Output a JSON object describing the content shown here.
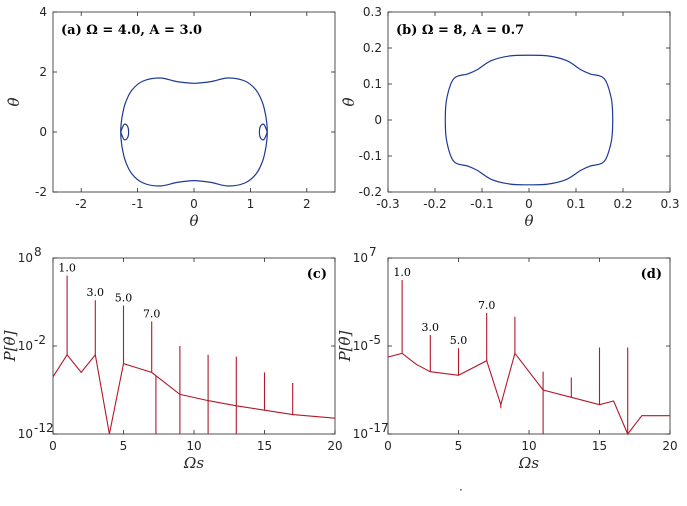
{
  "chart_data": [
    {
      "type": "line",
      "panel_label": "(a) Ω = 4.0, A = 3.0",
      "xlabel": "θ",
      "ylabel": "θ̇",
      "xlim": [
        -2.5,
        2.5
      ],
      "ylim": [
        -2,
        4
      ],
      "xticks": [
        "-2",
        "-1",
        "0",
        "1",
        "2"
      ],
      "yticks": [
        "-2",
        "0",
        "2",
        "4"
      ],
      "legend": "none",
      "line_color": "#1f3a93",
      "series": [
        {
          "x": [
            0,
            0.3,
            0.6,
            0.9,
            1.1,
            1.22,
            1.28,
            1.3,
            1.28,
            1.22,
            1.1,
            0.9,
            0.6,
            0.3,
            0,
            -0.3,
            -0.6,
            -0.9,
            -1.1,
            -1.22,
            -1.28,
            -1.3,
            -1.28,
            -1.22,
            -1.1,
            -0.9,
            -0.6,
            -0.3,
            0
          ],
          "y": [
            1.62,
            1.68,
            1.8,
            1.7,
            1.4,
            0.95,
            0.45,
            0,
            -0.45,
            -0.95,
            -1.4,
            -1.7,
            -1.8,
            -1.68,
            -1.62,
            -1.68,
            -1.8,
            -1.7,
            -1.4,
            -0.95,
            -0.45,
            0,
            0.45,
            0.95,
            1.4,
            1.7,
            1.8,
            1.68,
            1.62
          ]
        },
        {
          "x": [
            1.3,
            1.24,
            1.18,
            1.16,
            1.18,
            1.24,
            1.3
          ],
          "y": [
            0,
            0.25,
            0.2,
            0,
            -0.2,
            -0.25,
            0
          ]
        },
        {
          "x": [
            -1.3,
            -1.24,
            -1.18,
            -1.16,
            -1.18,
            -1.24,
            -1.3
          ],
          "y": [
            0,
            0.25,
            0.2,
            0,
            -0.2,
            -0.25,
            0
          ]
        }
      ]
    },
    {
      "type": "line",
      "panel_label": "(b) Ω = 8, A = 0.7",
      "xlabel": "θ",
      "ylabel": "θ̇",
      "xlim": [
        -0.3,
        0.3
      ],
      "ylim": [
        -0.2,
        0.3
      ],
      "xticks": [
        "-0.3",
        "-0.2",
        "-0.1",
        "0",
        "0.1",
        "0.2",
        "0.3"
      ],
      "yticks": [
        "-0.2",
        "-0.1",
        "0",
        "0.1",
        "0.2",
        "0.3"
      ],
      "legend": "none",
      "line_color": "#1f3a93",
      "series": [
        {
          "x": [
            0,
            0.04,
            0.08,
            0.11,
            0.13,
            0.16,
            0.175,
            0.178,
            0.175,
            0.16,
            0.13,
            0.11,
            0.08,
            0.04,
            0,
            -0.04,
            -0.08,
            -0.11,
            -0.13,
            -0.16,
            -0.175,
            -0.178,
            -0.175,
            -0.16,
            -0.13,
            -0.11,
            -0.08,
            -0.04,
            0
          ],
          "y": [
            0.18,
            0.178,
            0.165,
            0.14,
            0.128,
            0.115,
            0.06,
            0,
            -0.06,
            -0.115,
            -0.128,
            -0.14,
            -0.165,
            -0.178,
            -0.18,
            -0.178,
            -0.165,
            -0.14,
            -0.128,
            -0.115,
            -0.06,
            0,
            0.06,
            0.115,
            0.128,
            0.14,
            0.165,
            0.178,
            0.18
          ]
        }
      ]
    },
    {
      "type": "line",
      "panel_label": "(c)",
      "xlabel": "Ωs",
      "ylabel": "P[θ̇]",
      "xlim": [
        0,
        20
      ],
      "ylim": [
        -12,
        8
      ],
      "yscale": "log",
      "xticks": [
        "0",
        "5",
        "10",
        "15",
        "20"
      ],
      "yticks": [
        {
          "label": "10",
          "exp": "-12",
          "log": -12
        },
        {
          "label": "10",
          "exp": "-2",
          "log": -2
        },
        {
          "label": "10",
          "exp": "8",
          "log": 8
        }
      ],
      "legend": "none",
      "line_color": "#b2182b",
      "baseline_log_x": [
        0,
        1,
        2,
        3,
        4,
        5,
        6,
        7,
        9,
        11,
        13,
        15,
        17,
        20
      ],
      "baseline_log_y": [
        -5.5,
        -3.0,
        -5.0,
        -3.0,
        -13,
        -4.0,
        -4.5,
        -5.0,
        -7.5,
        -8.2,
        -8.8,
        -9.3,
        -9.8,
        -10.2
      ],
      "peaks": [
        {
          "x": 1,
          "log_p": 6.0,
          "label": "1.0"
        },
        {
          "x": 3,
          "log_p": 3.2,
          "label": "3.0"
        },
        {
          "x": 5,
          "log_p": 2.6,
          "label": "5.0"
        },
        {
          "x": 7,
          "log_p": 0.8,
          "label": "7.0"
        },
        {
          "x": 9,
          "log_p": -2.0
        },
        {
          "x": 11,
          "log_p": -3.0
        },
        {
          "x": 13,
          "log_p": -3.2
        },
        {
          "x": 15,
          "log_p": -5.0
        },
        {
          "x": 17,
          "log_p": -6.2
        }
      ],
      "dips": [
        {
          "x": 4,
          "log_p": -13
        },
        {
          "x": 7.3,
          "log_p": -13
        },
        {
          "x": 9,
          "log_p": -13
        },
        {
          "x": 11,
          "log_p": -13
        },
        {
          "x": 13,
          "log_p": -13
        }
      ]
    },
    {
      "type": "line",
      "panel_label": "(d)",
      "xlabel": "Ωs",
      "ylabel": "P[θ̇]",
      "xlim": [
        0,
        20
      ],
      "ylim": [
        -17,
        7
      ],
      "yscale": "log",
      "xticks": [
        "0",
        "5",
        "10",
        "15",
        "20"
      ],
      "yticks": [
        {
          "label": "10",
          "exp": "-17",
          "log": -17
        },
        {
          "label": "10",
          "exp": "-5",
          "log": -5
        },
        {
          "label": "10",
          "exp": "7",
          "log": 7
        }
      ],
      "legend": "none",
      "line_color": "#b2182b",
      "baseline_log_x": [
        0,
        1,
        2,
        3,
        5,
        7,
        8,
        9,
        11,
        13,
        15,
        16,
        17,
        18,
        20
      ],
      "baseline_log_y": [
        -6.5,
        -6.0,
        -7.5,
        -8.5,
        -9.0,
        -7.0,
        -13,
        -6.0,
        -11.0,
        -12.0,
        -13.0,
        -12.5,
        -18,
        -14.5,
        -14.5
      ],
      "peaks": [
        {
          "x": 1,
          "log_p": 4.0,
          "label": "1.0"
        },
        {
          "x": 3,
          "log_p": -3.5,
          "label": "3.0"
        },
        {
          "x": 5,
          "log_p": -5.3,
          "label": "5.0"
        },
        {
          "x": 7,
          "log_p": -0.5,
          "label": "7.0"
        },
        {
          "x": 9,
          "log_p": -1.0
        },
        {
          "x": 11,
          "log_p": -8.5
        },
        {
          "x": 13,
          "log_p": -9.3
        },
        {
          "x": 15,
          "log_p": -5.2
        },
        {
          "x": 17,
          "log_p": -5.2
        }
      ],
      "dips": [
        {
          "x": 8,
          "log_p": -13.5
        },
        {
          "x": 11,
          "log_p": -17
        },
        {
          "x": 17,
          "log_p": -18
        }
      ]
    }
  ]
}
